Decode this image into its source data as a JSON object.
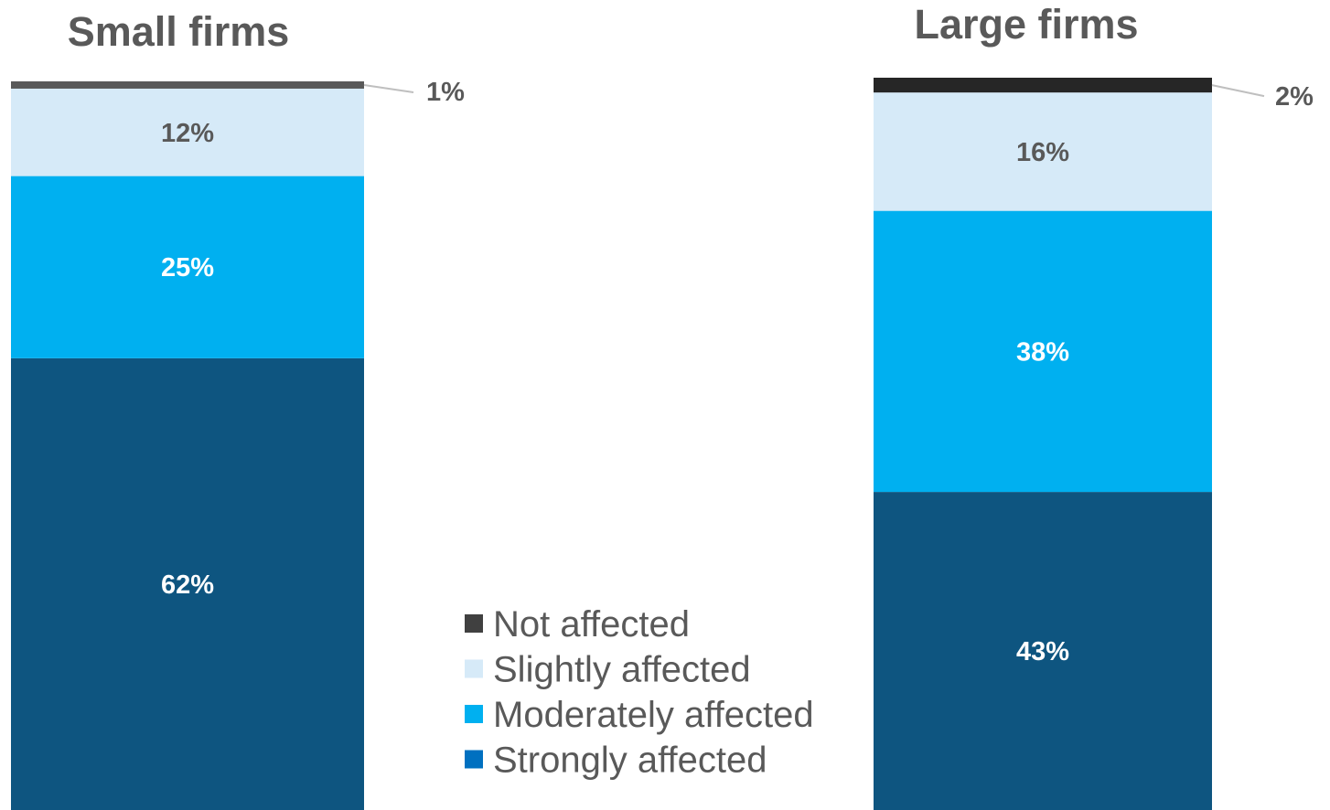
{
  "chart_data": {
    "type": "bar",
    "stacked": true,
    "series": [
      {
        "name": "Strongly affected",
        "color": "#0E5580",
        "legend_color": "#0070C0",
        "label_color": "#ffffff"
      },
      {
        "name": "Moderately affected",
        "color": "#00B0F0",
        "legend_color": "#00B0F0",
        "label_color": "#ffffff"
      },
      {
        "name": "Slightly affected",
        "color": "#D6EAF8",
        "legend_color": "#D6EAF8",
        "label_color": "#595959"
      },
      {
        "name": "Not affected",
        "color": "#595959",
        "large_color": "#262626",
        "legend_color": "#404040",
        "label_color": "#595959"
      }
    ],
    "panels": [
      {
        "title": "Small firms",
        "values": [
          62,
          25,
          12,
          1
        ],
        "labels": [
          "62%",
          "25%",
          "12%",
          "1%"
        ]
      },
      {
        "title": "Large firms",
        "values": [
          43,
          38,
          16,
          2
        ],
        "labels": [
          "43%",
          "38%",
          "16%",
          "2%"
        ]
      }
    ],
    "legend": {
      "placement": "center-bottom",
      "order": [
        "Not affected",
        "Slightly affected",
        "Moderately affected",
        "Strongly affected"
      ]
    }
  }
}
